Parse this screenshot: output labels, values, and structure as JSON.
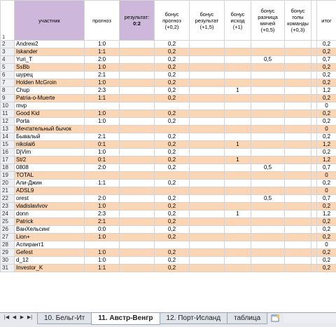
{
  "header": {
    "row_num": "1",
    "participant": "участник",
    "forecast": "прогноз",
    "result_label": "результат:",
    "result_value": "0:2",
    "bonus_forecast": "бонус прогноз (+0,2)",
    "bonus_result": "бонус результат (+1,5)",
    "bonus_outcome": "бонус исход (+1)",
    "bonus_diff": "бонус разница мячей (+0,5)",
    "bonus_goals": "бонус голы команды (+0,3)",
    "total": "итог"
  },
  "rows": [
    {
      "n": "2",
      "name": "Andrew2",
      "forecast": "1:0",
      "b1": "0,2",
      "b3": "",
      "b4": "",
      "total": "0,2"
    },
    {
      "n": "3",
      "name": "Iskander",
      "forecast": "1:1",
      "b1": "0,2",
      "b3": "",
      "b4": "",
      "total": "0,2"
    },
    {
      "n": "4",
      "name": "Yuri_T",
      "forecast": "2:0",
      "b1": "0,2",
      "b3": "",
      "b4": "0,5",
      "total": "0,7"
    },
    {
      "n": "5",
      "name": "SsBb",
      "forecast": "1:0",
      "b1": "0,2",
      "b3": "",
      "b4": "",
      "total": "0,2"
    },
    {
      "n": "6",
      "name": "шурец",
      "forecast": "2:1",
      "b1": "0,2",
      "b3": "",
      "b4": "",
      "total": "0,2"
    },
    {
      "n": "7",
      "name": "Holden McGroin",
      "forecast": "1:0",
      "b1": "0,2",
      "b3": "",
      "b4": "",
      "total": "0,2"
    },
    {
      "n": "8",
      "name": "Chup",
      "forecast": "2:3",
      "b1": "0,2",
      "b3": "1",
      "b4": "",
      "total": "1,2"
    },
    {
      "n": "9",
      "name": "Patria-o-Muerte",
      "forecast": "1:1",
      "b1": "0,2",
      "b3": "",
      "b4": "",
      "total": "0,2"
    },
    {
      "n": "10",
      "name": "mvp",
      "forecast": "",
      "b1": "",
      "b3": "",
      "b4": "",
      "total": "0"
    },
    {
      "n": "11",
      "name": "Good Kid",
      "forecast": "1:0",
      "b1": "0,2",
      "b3": "",
      "b4": "",
      "total": "0,2"
    },
    {
      "n": "12",
      "name": "Porta",
      "forecast": "1:0",
      "b1": "0,2",
      "b3": "",
      "b4": "",
      "total": "0,2"
    },
    {
      "n": "13",
      "name": "Мечтательный бычок",
      "forecast": "",
      "b1": "",
      "b3": "",
      "b4": "",
      "total": "0"
    },
    {
      "n": "14",
      "name": "Бывалый",
      "forecast": "2:1",
      "b1": "0,2",
      "b3": "",
      "b4": "",
      "total": "0,2"
    },
    {
      "n": "15",
      "name": "nikolai6",
      "forecast": "0:1",
      "b1": "0,2",
      "b3": "1",
      "b4": "",
      "total": "1,2"
    },
    {
      "n": "16",
      "name": "DjVim",
      "forecast": "1:0",
      "b1": "0,2",
      "b3": "",
      "b4": "",
      "total": "0,2"
    },
    {
      "n": "17",
      "name": "St/2",
      "forecast": "0:1",
      "b1": "0,2",
      "b3": "1",
      "b4": "",
      "total": "1,2"
    },
    {
      "n": "18",
      "name": "0808",
      "forecast": "2:0",
      "b1": "0,2",
      "b3": "",
      "b4": "0,5",
      "total": "0,7"
    },
    {
      "n": "19",
      "name": "TOTAL",
      "forecast": "",
      "b1": "",
      "b3": "",
      "b4": "",
      "total": "0"
    },
    {
      "n": "20",
      "name": "Али-Джин",
      "forecast": "1:1",
      "b1": "0,2",
      "b3": "",
      "b4": "",
      "total": "0,2"
    },
    {
      "n": "21",
      "name": "ADSL9",
      "forecast": "",
      "b1": "",
      "b3": "",
      "b4": "",
      "total": "0"
    },
    {
      "n": "22",
      "name": "orest",
      "forecast": "2:0",
      "b1": "0,2",
      "b3": "",
      "b4": "0,5",
      "total": "0,7"
    },
    {
      "n": "23",
      "name": "vladislavlvov",
      "forecast": "1:0",
      "b1": "0,2",
      "b3": "",
      "b4": "",
      "total": "0,2"
    },
    {
      "n": "24",
      "name": "donn",
      "forecast": "2:3",
      "b1": "0,2",
      "b3": "1",
      "b4": "",
      "total": "1,2"
    },
    {
      "n": "25",
      "name": "Patrick",
      "forecast": "2:1",
      "b1": "0,2",
      "b3": "",
      "b4": "",
      "total": "0,2"
    },
    {
      "n": "26",
      "name": "ВанХельсинг",
      "forecast": "0:0",
      "b1": "0,2",
      "b3": "",
      "b4": "",
      "total": "0,2"
    },
    {
      "n": "27",
      "name": "Lion+",
      "forecast": "1:0",
      "b1": "0,2",
      "b3": "",
      "b4": "",
      "total": "0,2"
    },
    {
      "n": "28",
      "name": "Аспирант1",
      "forecast": "",
      "b1": "",
      "b3": "",
      "b4": "",
      "total": "0"
    },
    {
      "n": "29",
      "name": "Gefest",
      "forecast": "1:0",
      "b1": "0,2",
      "b3": "",
      "b4": "",
      "total": "0,2"
    },
    {
      "n": "30",
      "name": "d_12",
      "forecast": "1:0",
      "b1": "0,2",
      "b3": "",
      "b4": "",
      "total": "0,2"
    },
    {
      "n": "31",
      "name": "Investor_K",
      "forecast": "1:1",
      "b1": "0,2",
      "b3": "",
      "b4": "",
      "total": "0,2"
    }
  ],
  "sheet_tabs": [
    {
      "label": "10. Бельг-Ит",
      "active": false
    },
    {
      "label": "11. Австр-Венгр",
      "active": true
    },
    {
      "label": "12. Порт-Исланд",
      "active": false
    },
    {
      "label": "таблица",
      "active": false
    }
  ],
  "nav_buttons": [
    "first-sheet-icon",
    "prev-sheet-icon",
    "next-sheet-icon",
    "last-sheet-icon"
  ],
  "colors": {
    "header_accent": "#cdb8dc",
    "row_stripe": "#fcd5b4",
    "row_plain": "#ffffff"
  }
}
